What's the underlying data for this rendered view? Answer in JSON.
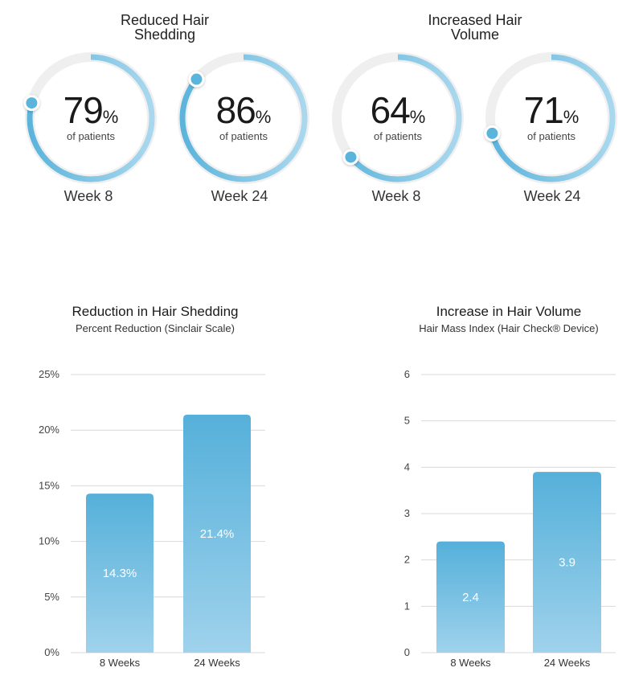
{
  "groups": [
    {
      "title_line1": "Reduced Hair",
      "title_line2": "Shedding"
    },
    {
      "title_line1": "Increased Hair",
      "title_line2": "Volume"
    }
  ],
  "gauges": [
    {
      "value": "79",
      "unit": "%",
      "sub": "of patients",
      "week": "Week 8",
      "fraction": 0.79
    },
    {
      "value": "86",
      "unit": "%",
      "sub": "of patients",
      "week": "Week 24",
      "fraction": 0.86
    },
    {
      "value": "64",
      "unit": "%",
      "sub": "of patients",
      "week": "Week 8",
      "fraction": 0.64
    },
    {
      "value": "71",
      "unit": "%",
      "sub": "of patients",
      "week": "Week 24",
      "fraction": 0.71
    }
  ],
  "colors": {
    "accent": "#5bb4dc",
    "accent_light": "#a9d8ee",
    "track": "#efefef",
    "grid": "#d9d9d9"
  },
  "chart_data": [
    {
      "type": "bar",
      "title": "Reduction in Hair Shedding",
      "subtitle": "Percent Reduction (Sinclair Scale)",
      "categories": [
        "8 Weeks",
        "24 Weeks"
      ],
      "values": [
        14.3,
        21.4
      ],
      "value_labels": [
        "14.3%",
        "21.4%"
      ],
      "ylim": [
        0,
        25
      ],
      "yticks": [
        "0%",
        "5%",
        "10%",
        "15%",
        "20%",
        "25%"
      ],
      "grid": true
    },
    {
      "type": "bar",
      "title": "Increase in Hair Volume",
      "subtitle": "Hair Mass Index (Hair Check® Device)",
      "categories": [
        "8 Weeks",
        "24 Weeks"
      ],
      "values": [
        2.4,
        3.9
      ],
      "value_labels": [
        "2.4",
        "3.9"
      ],
      "ylim": [
        0,
        6
      ],
      "yticks": [
        "0",
        "1",
        "2",
        "3",
        "4",
        "5",
        "6"
      ],
      "grid": true
    }
  ]
}
